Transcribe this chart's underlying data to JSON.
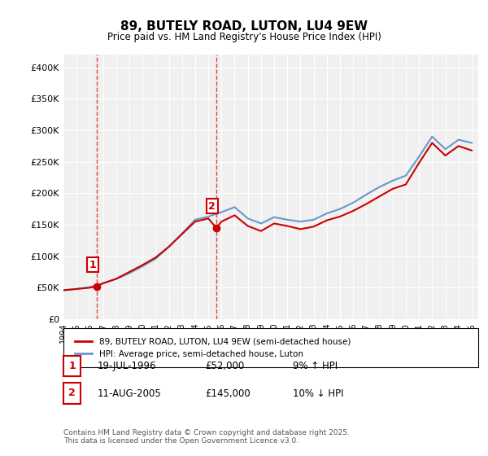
{
  "title": "89, BUTELY ROAD, LUTON, LU4 9EW",
  "subtitle": "Price paid vs. HM Land Registry's House Price Index (HPI)",
  "xlabel": "",
  "ylabel": "",
  "ylim": [
    0,
    420000
  ],
  "xlim_start": 1994.0,
  "xlim_end": 2025.5,
  "yticks": [
    0,
    50000,
    100000,
    150000,
    200000,
    250000,
    300000,
    350000,
    400000
  ],
  "ytick_labels": [
    "£0",
    "£50K",
    "£100K",
    "£150K",
    "£200K",
    "£250K",
    "£300K",
    "£350K",
    "£400K"
  ],
  "red_line_color": "#cc0000",
  "blue_line_color": "#6699cc",
  "sale1_x": 1996.55,
  "sale1_y": 52000,
  "sale2_x": 2005.61,
  "sale2_y": 145000,
  "annotation1_label": "1",
  "annotation2_label": "2",
  "hpi_line": {
    "years": [
      1994,
      1995,
      1996,
      1997,
      1998,
      1999,
      2000,
      2001,
      2002,
      2003,
      2004,
      2005,
      2006,
      2007,
      2008,
      2009,
      2010,
      2011,
      2012,
      2013,
      2014,
      2015,
      2016,
      2017,
      2018,
      2019,
      2020,
      2021,
      2022,
      2023,
      2024,
      2025
    ],
    "values": [
      46000,
      48000,
      51000,
      57000,
      64000,
      73000,
      84000,
      96000,
      115000,
      136000,
      158000,
      163000,
      170000,
      178000,
      160000,
      152000,
      162000,
      158000,
      155000,
      158000,
      168000,
      175000,
      185000,
      198000,
      210000,
      220000,
      228000,
      258000,
      290000,
      270000,
      285000,
      280000
    ]
  },
  "price_line": {
    "years": [
      1994,
      1995,
      1996,
      1996.55,
      1997,
      1998,
      1999,
      2000,
      2001,
      2002,
      2003,
      2004,
      2005,
      2005.61,
      2006,
      2007,
      2008,
      2009,
      2010,
      2011,
      2012,
      2013,
      2014,
      2015,
      2016,
      2017,
      2018,
      2019,
      2020,
      2021,
      2022,
      2023,
      2024,
      2025
    ],
    "values": [
      46000,
      48000,
      50000,
      52000,
      57000,
      64000,
      75000,
      86000,
      98000,
      115000,
      135000,
      155000,
      160000,
      145000,
      155000,
      165000,
      148000,
      140000,
      152000,
      148000,
      143000,
      147000,
      157000,
      163000,
      172000,
      183000,
      195000,
      207000,
      214000,
      248000,
      280000,
      260000,
      275000,
      268000
    ]
  },
  "legend_label_red": "89, BUTELY ROAD, LUTON, LU4 9EW (semi-detached house)",
  "legend_label_blue": "HPI: Average price, semi-detached house, Luton",
  "table_row1": [
    "1",
    "19-JUL-1996",
    "£52,000",
    "9% ↑ HPI"
  ],
  "table_row2": [
    "2",
    "11-AUG-2005",
    "£145,000",
    "10% ↓ HPI"
  ],
  "footnote": "Contains HM Land Registry data © Crown copyright and database right 2025.\nThis data is licensed under the Open Government Licence v3.0.",
  "bg_color": "#ffffff",
  "plot_bg_color": "#f0f0f0",
  "grid_color": "#ffffff",
  "hatch_color": "#dddddd"
}
